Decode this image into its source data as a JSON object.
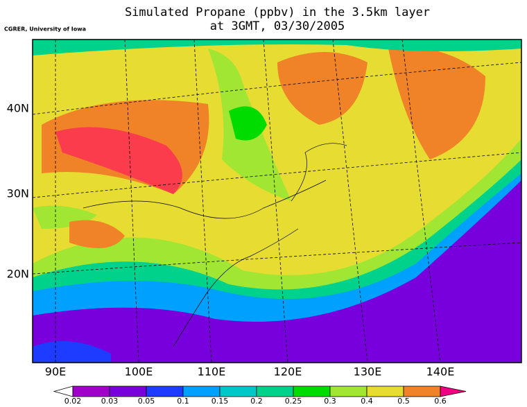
{
  "title": [
    "Simulated Propane (ppbv) in the 3.5km layer",
    "at 3GMT, 03/30/2005"
  ],
  "credit": "CGRER, University of Iowa",
  "latitude_labels": [
    "40N",
    "30N",
    "20N"
  ],
  "longitude_labels": [
    "90E",
    "100E",
    "110E",
    "120E",
    "130E",
    "140E"
  ],
  "colorbar": {
    "labels": [
      "0.02",
      "0.03",
      "0.05",
      "0.1",
      "0.15",
      "0.2",
      "0.25",
      "0.3",
      "0.4",
      "0.5",
      "0.6"
    ],
    "colors": [
      "#ffffff",
      "#a000c8",
      "#7800dc",
      "#1e3cff",
      "#00a0ff",
      "#00c8c8",
      "#00d28c",
      "#00dc00",
      "#a0e632",
      "#e6dc32",
      "#f08228",
      "#f00082"
    ]
  }
}
